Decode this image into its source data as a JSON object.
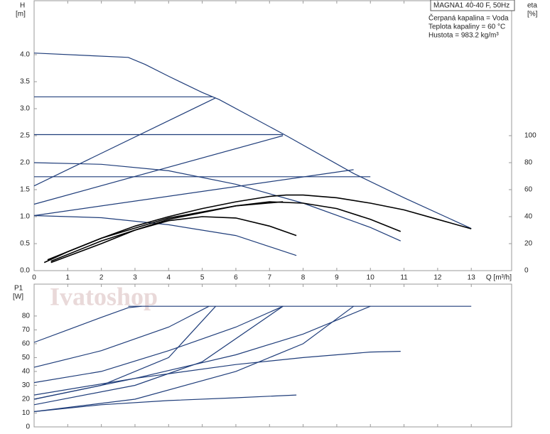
{
  "chart_data": [
    {
      "type": "line",
      "y_label": "H",
      "y_unit": "[m]",
      "y2_label": "eta",
      "y2_unit": "[%]",
      "x_label": "Q [m³/h]",
      "annotations": [
        "MAGNA1 40-40 F, 50Hz",
        "Čerpaná kapalina = Voda",
        "Teplota kapaliny = 60 °C",
        "Hustota = 983.2 kg/m³"
      ],
      "xlim": [
        0,
        14.2
      ],
      "xticks": [
        0,
        1,
        2,
        3,
        4,
        5,
        6,
        7,
        8,
        9,
        10,
        11,
        12,
        13
      ],
      "ylim": [
        0,
        5.0
      ],
      "yticks": [
        {
          "value": 0,
          "label": "0.0"
        },
        0.5,
        {
          "value": 1,
          "label": "1.0"
        },
        1.5,
        {
          "value": 2,
          "label": "2.0"
        },
        2.5,
        {
          "value": 3,
          "label": "3.0"
        },
        3.5,
        {
          "value": 4,
          "label": "4.0"
        }
      ],
      "y2lim": [
        0,
        200
      ],
      "y2ticks": [
        0,
        20,
        40,
        60,
        80,
        100
      ],
      "grid": false,
      "series": [
        {
          "color": "#1f3d7a",
          "x": [
            0,
            2.8,
            3.3,
            4,
            5,
            5.5,
            7.5,
            9.5,
            11,
            13
          ],
          "values": [
            4.03,
            3.95,
            3.82,
            3.6,
            3.3,
            3.17,
            2.5,
            1.8,
            1.35,
            0.78
          ]
        },
        {
          "color": "#1f3d7a",
          "x": [
            0,
            5.3
          ],
          "values": [
            3.22,
            3.22
          ]
        },
        {
          "color": "#1f3d7a",
          "x": [
            0,
            7.4
          ],
          "values": [
            2.52,
            2.52
          ]
        },
        {
          "color": "#1f3d7a",
          "x": [
            0,
            10
          ],
          "values": [
            1.74,
            1.74
          ]
        },
        {
          "color": "#1f3d7a",
          "x": [
            0,
            5.4
          ],
          "values": [
            1.57,
            3.2
          ]
        },
        {
          "color": "#1f3d7a",
          "x": [
            0,
            7.4
          ],
          "values": [
            1.23,
            2.5
          ]
        },
        {
          "color": "#1f3d7a",
          "x": [
            0,
            9.5
          ],
          "values": [
            1.02,
            1.87
          ]
        },
        {
          "color": "#1f3d7a",
          "x": [
            0,
            2,
            4,
            6,
            8,
            10,
            10.9
          ],
          "values": [
            2.0,
            1.97,
            1.85,
            1.6,
            1.25,
            0.8,
            0.55
          ]
        },
        {
          "color": "#1f3d7a",
          "x": [
            0,
            2,
            4,
            6,
            7.8
          ],
          "values": [
            1.02,
            0.98,
            0.85,
            0.65,
            0.28
          ]
        },
        {
          "color": "#000000",
          "axis": "y2",
          "x": [
            0.3,
            1,
            2,
            3,
            4,
            5,
            6,
            7,
            7.5,
            8,
            9,
            10,
            11,
            12,
            13
          ],
          "values": [
            6,
            14,
            24,
            33,
            40,
            46,
            51,
            55,
            56,
            56,
            54,
            50,
            45,
            38,
            31
          ]
        },
        {
          "color": "#000000",
          "axis": "y2",
          "x": [
            0.4,
            2,
            4,
            6,
            7.4
          ],
          "values": [
            8,
            24,
            39,
            48,
            51
          ]
        },
        {
          "color": "#000000",
          "axis": "y2",
          "x": [
            0.5,
            2,
            4,
            6,
            7,
            8,
            9,
            10,
            10.9
          ],
          "values": [
            7,
            22,
            38,
            48,
            51,
            50,
            46,
            38,
            29
          ]
        },
        {
          "color": "#000000",
          "axis": "y2",
          "x": [
            0.5,
            2,
            3,
            4,
            5,
            6,
            7,
            7.8
          ],
          "values": [
            6,
            20,
            30,
            37,
            40,
            39,
            33,
            26
          ]
        }
      ]
    },
    {
      "type": "line",
      "y_label": "P1",
      "y_unit": "[W]",
      "watermark": "Ivatoshop",
      "xlim": [
        0,
        14.2
      ],
      "xticks": [
        0,
        1,
        2,
        3,
        4,
        5,
        6,
        7,
        8,
        9,
        10,
        11,
        12,
        13
      ],
      "ylim": [
        0,
        103
      ],
      "yticks": [
        0,
        10,
        20,
        30,
        40,
        50,
        60,
        70,
        80
      ],
      "grid": false,
      "series": [
        {
          "color": "#1f3d7a",
          "x": [
            2.8,
            13
          ],
          "values": [
            87,
            87
          ]
        },
        {
          "color": "#1f3d7a",
          "x": [
            0,
            1,
            2,
            2.8,
            3.2
          ],
          "values": [
            61,
            70,
            79,
            86,
            87
          ]
        },
        {
          "color": "#1f3d7a",
          "x": [
            0,
            2,
            4,
            5.2
          ],
          "values": [
            43,
            55,
            72,
            87
          ]
        },
        {
          "color": "#1f3d7a",
          "x": [
            0,
            2,
            4,
            6,
            7.4
          ],
          "values": [
            32,
            40,
            55,
            72,
            87
          ]
        },
        {
          "color": "#1f3d7a",
          "x": [
            0,
            3,
            6,
            8,
            10
          ],
          "values": [
            23,
            35,
            52,
            67,
            87
          ]
        },
        {
          "color": "#1f3d7a",
          "x": [
            0,
            2,
            4,
            5.4
          ],
          "values": [
            20,
            30,
            50,
            87
          ]
        },
        {
          "color": "#1f3d7a",
          "x": [
            0,
            3,
            5,
            7.4
          ],
          "values": [
            16,
            30,
            47,
            87
          ]
        },
        {
          "color": "#1f3d7a",
          "x": [
            0,
            3,
            6,
            8,
            9.5
          ],
          "values": [
            11,
            20,
            40,
            60,
            87
          ]
        },
        {
          "color": "#1f3d7a",
          "x": [
            0,
            2,
            4,
            6,
            7.8
          ],
          "values": [
            11,
            16,
            19,
            21,
            23
          ]
        },
        {
          "color": "#1f3d7a",
          "x": [
            0,
            3,
            6,
            8,
            10,
            10.9
          ],
          "values": [
            20,
            35,
            45,
            50,
            54,
            54.5
          ]
        }
      ]
    }
  ]
}
